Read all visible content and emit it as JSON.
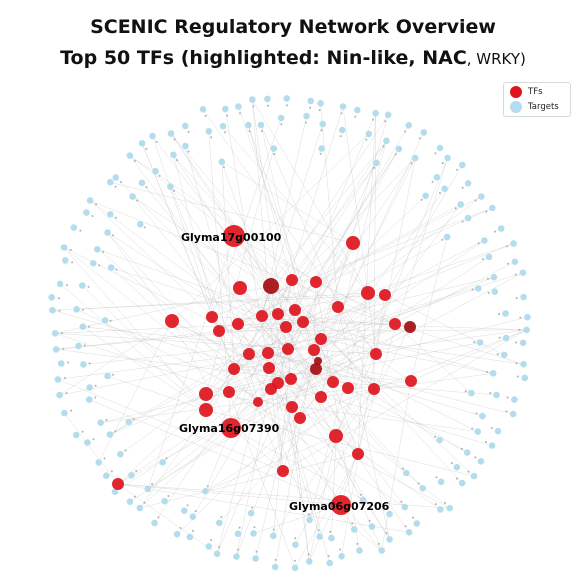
{
  "title_line1": "SCENIC Regulatory Network Overview",
  "title_line2_main": "Top 50 TFs (highlighted: Nin-like, NAC",
  "title_line2_tail": ", WRKY)",
  "legend": {
    "tfs_label": "TFs",
    "targets_label": "Targets"
  },
  "highlighted_labels": [
    "Glyma17g00100",
    "Glyma16g07390",
    "Glyma06g07206"
  ],
  "colors": {
    "tf": "#e0141e",
    "tf_dark": "#a30d12",
    "target": "#b4dcef",
    "edge": "#bfbfbf"
  }
}
